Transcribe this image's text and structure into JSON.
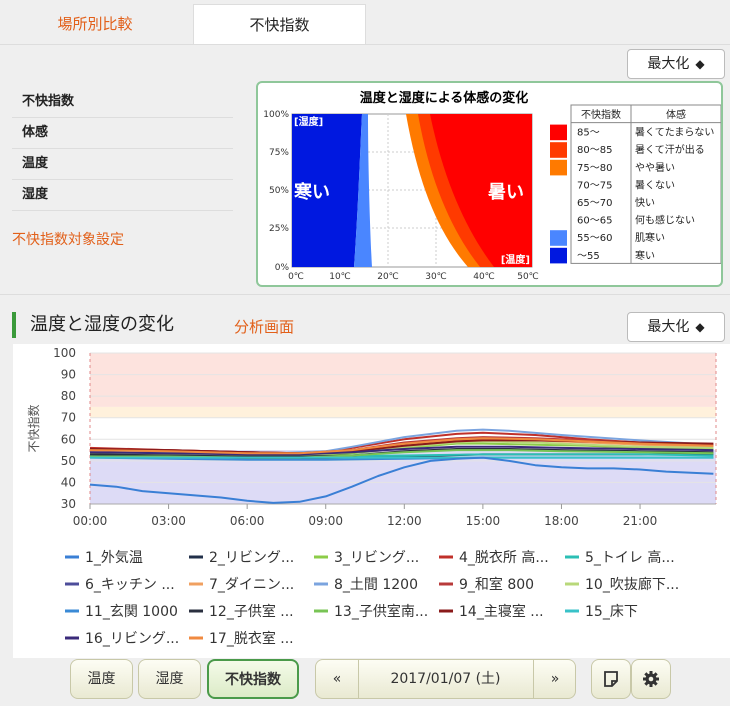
{
  "tabs": [
    "場所別比較",
    "不快指数"
  ],
  "maximize_label": "最大化",
  "maximize_arrow": "◆",
  "left_list": [
    "不快指数",
    "体感",
    "温度",
    "湿度"
  ],
  "setting_link": "不快指数対象設定",
  "info": {
    "title": "温度と湿度による体感の変化",
    "y_ticks": [
      "100%",
      "75%",
      "50%",
      "25%",
      "0%"
    ],
    "x_ticks": [
      "0℃",
      "10℃",
      "20℃",
      "30℃",
      "40℃",
      "50℃"
    ],
    "corner_labels": {
      "humidity": "[湿度]",
      "temperature": "[温度]"
    },
    "cold_label": "寒い",
    "hot_label": "暑い",
    "legend_headers": [
      "不快指数",
      "体感"
    ],
    "legend_rows": [
      {
        "range": "85～",
        "feel": "暑くてたまらない",
        "color": "#ff0000"
      },
      {
        "range": "80～85",
        "feel": "暑くて汗が出る",
        "color": "#ff3a00"
      },
      {
        "range": "75～80",
        "feel": "やや暑い",
        "color": "#ff7a00"
      },
      {
        "range": "70～75",
        "feel": "暑くない",
        "color": "#ffffff"
      },
      {
        "range": "65～70",
        "feel": "快い",
        "color": "#ffffff"
      },
      {
        "range": "60～65",
        "feel": "何も感じない",
        "color": "#ffffff"
      },
      {
        "range": "55～60",
        "feel": "肌寒い",
        "color": "#4a86ff"
      },
      {
        "range": "～55",
        "feel": "寒い",
        "color": "#0018e0"
      }
    ]
  },
  "section_title": "温度と湿度の変化",
  "analysis_link": "分析画面",
  "chart_data": {
    "type": "line",
    "ylabel": "不快指数",
    "ylim": [
      30,
      100
    ],
    "y_ticks": [
      100,
      90,
      80,
      70,
      60,
      50,
      40,
      30
    ],
    "x_ticks": [
      "00:00",
      "03:00",
      "06:00",
      "09:00",
      "12:00",
      "15:00",
      "18:00",
      "21:00"
    ],
    "x_hours": [
      0,
      3,
      6,
      9,
      12,
      15,
      18,
      21
    ],
    "x_range": [
      0,
      23.9
    ],
    "bands": [
      {
        "from": 75,
        "to": 100,
        "color": "#fde3de"
      },
      {
        "from": 70,
        "to": 75,
        "color": "#fff1dc"
      },
      {
        "from": 55,
        "to": 70,
        "color": "#ffffff"
      },
      {
        "from": 30,
        "to": 55,
        "color": "#dddbf6"
      }
    ],
    "series": [
      {
        "name": "1_外気温",
        "color": "#3a7fd5",
        "x": [
          0,
          1,
          2,
          3,
          4,
          5,
          6,
          7,
          8,
          9,
          10,
          11,
          12,
          13,
          14,
          15,
          16,
          17,
          18,
          19,
          20,
          21,
          22,
          23.8
        ],
        "values": [
          39,
          38,
          36,
          35,
          34,
          33,
          31.5,
          30.5,
          31,
          33.5,
          38,
          43,
          47,
          50,
          51,
          51.5,
          50,
          48,
          47,
          46.5,
          46.5,
          46,
          45,
          44
        ]
      },
      {
        "name": "2_リビング...",
        "color": "#22304a",
        "x": [
          0,
          4,
          8,
          9,
          12,
          15,
          18,
          21,
          23.8
        ],
        "values": [
          52,
          51.5,
          51,
          51,
          52,
          53,
          53,
          53,
          53
        ]
      },
      {
        "name": "3_リビング...",
        "color": "#8ccc48",
        "x": [
          0,
          3,
          6,
          8,
          10,
          12,
          14,
          15,
          17,
          19,
          21,
          23.8
        ],
        "values": [
          52.5,
          52.5,
          52,
          52,
          53.5,
          56,
          58,
          58,
          57.5,
          57,
          56,
          55.5
        ]
      },
      {
        "name": "4_脱衣所 高...",
        "color": "#c0302a",
        "x": [
          0,
          3,
          6,
          8,
          9,
          10,
          12,
          14,
          15,
          17,
          19,
          21,
          23.8
        ],
        "values": [
          56,
          55,
          54,
          53.5,
          54,
          56,
          60,
          62.5,
          63,
          62,
          60,
          58.5,
          57.5
        ]
      },
      {
        "name": "5_トイレ 高...",
        "color": "#2bbfb4",
        "x": [
          0,
          3,
          6,
          9,
          12,
          15,
          18,
          21,
          23.8
        ],
        "values": [
          52.5,
          52.5,
          52,
          52,
          52.5,
          53,
          53,
          53,
          52.5
        ]
      },
      {
        "name": "6_キッチン ...",
        "color": "#4d4d9a",
        "x": [
          0,
          3,
          6,
          8,
          10,
          12,
          14,
          15,
          17,
          19,
          21,
          23.8
        ],
        "values": [
          55,
          54.5,
          54,
          53.5,
          55,
          58,
          60,
          60.5,
          60,
          59,
          58,
          57
        ]
      },
      {
        "name": "7_ダイニン...",
        "color": "#f0a060",
        "x": [
          0,
          3,
          6,
          8,
          10,
          12,
          14,
          15,
          17,
          19,
          21,
          23.8
        ],
        "values": [
          54,
          53.5,
          53,
          53,
          54.5,
          57.5,
          59.5,
          60,
          59.5,
          58.5,
          57.5,
          56.5
        ]
      },
      {
        "name": "8_土間 1200",
        "color": "#7ba4df",
        "x": [
          0,
          3,
          6,
          7,
          8,
          9,
          10,
          12,
          14,
          15,
          16,
          18,
          21,
          23.8
        ],
        "values": [
          54,
          53.5,
          53,
          53.5,
          54,
          54.5,
          56.5,
          61,
          64,
          64.5,
          64,
          62,
          59.5,
          57.5
        ]
      },
      {
        "name": "9_和室 800",
        "color": "#b83a3a",
        "x": [
          0,
          3,
          6,
          8,
          10,
          12,
          14,
          15,
          17,
          19,
          21,
          23.8
        ],
        "values": [
          55.5,
          55,
          54,
          53.5,
          55,
          58.5,
          60.5,
          61,
          60.5,
          59.5,
          58.5,
          57.5
        ]
      },
      {
        "name": "10_吹抜廊下...",
        "color": "#b8d87a",
        "x": [
          0,
          3,
          6,
          8,
          10,
          12,
          14,
          15,
          17,
          19,
          21,
          23.8
        ],
        "values": [
          53.5,
          53,
          52.5,
          52.5,
          54,
          56.5,
          58.5,
          59,
          58.5,
          57.5,
          56.5,
          56
        ]
      },
      {
        "name": "11_玄関 1000",
        "color": "#3a8ad6",
        "x": [
          0,
          3,
          6,
          9,
          12,
          15,
          18,
          21,
          23.8
        ],
        "values": [
          51.5,
          51,
          50.5,
          50.5,
          51,
          51.5,
          51.5,
          51.5,
          51.5
        ]
      },
      {
        "name": "12_子供室 ...",
        "color": "#2a2f3f",
        "x": [
          0,
          3,
          6,
          8,
          10,
          12,
          14,
          16,
          18,
          21,
          23.8
        ],
        "values": [
          53,
          52.5,
          52,
          52,
          52.5,
          54.5,
          55.5,
          55.5,
          55,
          54.5,
          54
        ]
      },
      {
        "name": "13_子供室南...",
        "color": "#78c455",
        "x": [
          0,
          3,
          6,
          8,
          10,
          12,
          14,
          16,
          18,
          21,
          23.8
        ],
        "values": [
          52,
          52,
          51.5,
          51.5,
          52.5,
          54,
          55,
          55,
          54.5,
          54,
          53.5
        ]
      },
      {
        "name": "14_主寝室 ...",
        "color": "#8a1a1a",
        "x": [
          0,
          3,
          6,
          8,
          10,
          12,
          14,
          15,
          17,
          19,
          21,
          23.8
        ],
        "values": [
          55.5,
          55,
          54,
          53.5,
          54.5,
          57,
          59,
          59.5,
          59.5,
          59,
          58.5,
          58
        ]
      },
      {
        "name": "15_床下",
        "color": "#38c2c8",
        "x": [
          0,
          3,
          6,
          9,
          12,
          15,
          18,
          21,
          23.8
        ],
        "values": [
          51.5,
          51.5,
          51.5,
          51.5,
          51.5,
          51.5,
          51.5,
          51.5,
          51.5
        ]
      },
      {
        "name": "16_リビング...",
        "color": "#3a2a7a",
        "x": [
          0,
          3,
          6,
          8,
          10,
          12,
          14,
          16,
          18,
          21,
          23.8
        ],
        "values": [
          54,
          53.5,
          53,
          53,
          54,
          55.5,
          56.5,
          56.5,
          56,
          55.5,
          55
        ]
      },
      {
        "name": "17_脱衣室 ...",
        "color": "#f08a40",
        "x": [
          0,
          3,
          6,
          8,
          10,
          12,
          14,
          15,
          17,
          19,
          21,
          23.8
        ],
        "values": [
          55,
          54.5,
          53.5,
          53.5,
          55,
          58,
          60,
          60.5,
          60,
          59,
          58,
          57
        ]
      }
    ]
  },
  "bottom": {
    "temp_button": "温度",
    "humidity_button": "湿度",
    "discomfort_button": "不快指数",
    "prev": "«",
    "date": "2017/01/07 (土)",
    "next": "»"
  },
  "icons": [
    "note-icon",
    "gear-icon"
  ]
}
